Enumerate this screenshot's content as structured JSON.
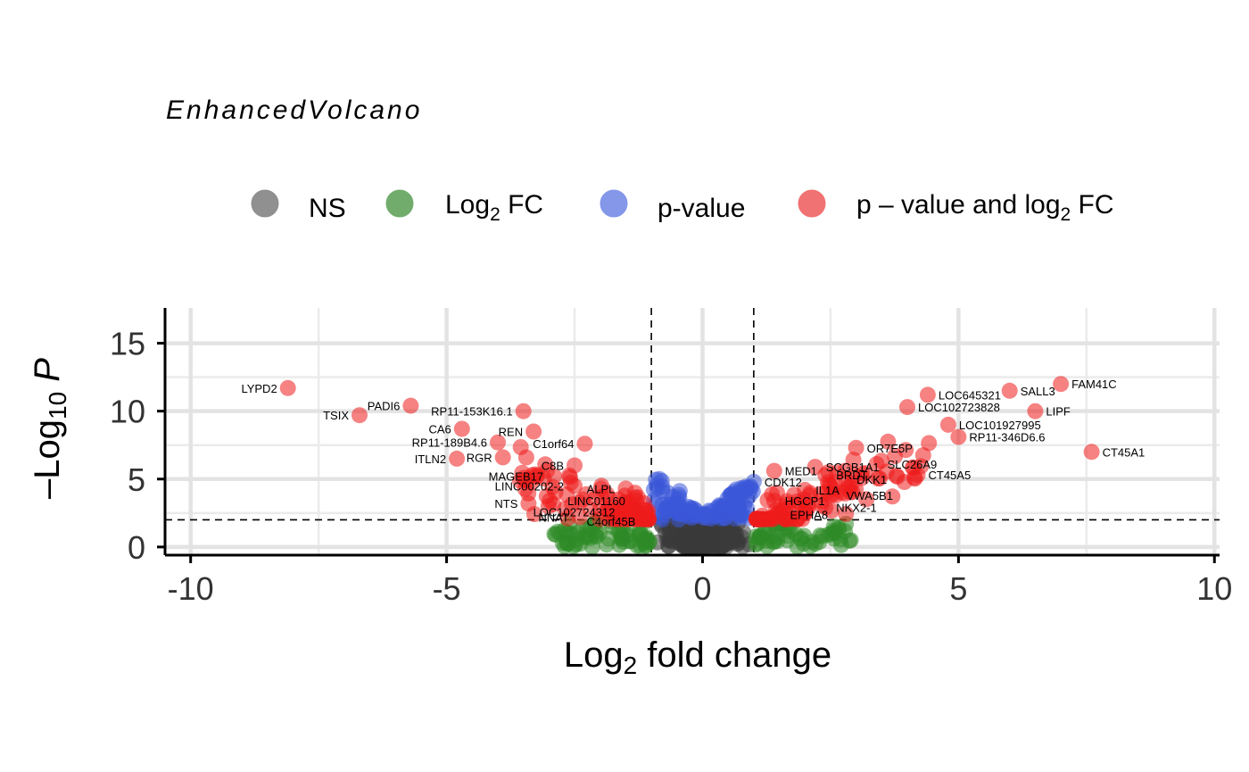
{
  "chart_data": {
    "type": "scatter",
    "title": "EnhancedVolcano",
    "xlabel": {
      "base": "Log",
      "sub": "2",
      "rest": " fold change"
    },
    "ylabel": {
      "pre": "–Log",
      "sub": "10",
      "italic": "P"
    },
    "xlim": [
      -10.5,
      10.1
    ],
    "ylim": [
      -0.6,
      17.6
    ],
    "x_ticks": [
      -10,
      -5,
      0,
      5,
      10
    ],
    "x_tick_labels": [
      "-10",
      "-5",
      "0",
      "5",
      "10"
    ],
    "y_ticks": [
      0,
      5,
      10,
      15
    ],
    "y_tick_labels": [
      "0",
      "5",
      "10",
      "15"
    ],
    "fc_cutoff": 1,
    "p_cutoff_neglog10": 2,
    "grid": true,
    "legend_position": "top",
    "legend": [
      {
        "key": "ns",
        "label": "NS",
        "color": "#8a8a8a"
      },
      {
        "key": "fc",
        "label": "Log",
        "sub": "2",
        "post": " FC",
        "color": "#6aa865"
      },
      {
        "key": "p",
        "label": "p-value",
        "color": "#7e91e8"
      },
      {
        "key": "both",
        "label": "p – value and log",
        "sub": "2",
        "post": " FC",
        "color": "#f06a6a"
      }
    ],
    "colors": {
      "ns": "#3a3a3a",
      "fc": "#2e8a26",
      "p": "#3a57d8",
      "both": "#ee1c1c"
    },
    "labeled_points": [
      {
        "label": "LYPD2",
        "x": -8.1,
        "y": 11.7
      },
      {
        "label": "TSIX",
        "x": -6.7,
        "y": 9.7
      },
      {
        "label": "PADI6",
        "x": -5.7,
        "y": 10.4
      },
      {
        "label": "RP11-153K16.1",
        "x": -3.5,
        "y": 10.0
      },
      {
        "label": "CA6",
        "x": -4.7,
        "y": 8.7
      },
      {
        "label": "REN",
        "x": -3.3,
        "y": 8.5
      },
      {
        "label": "RP11-189B4.6",
        "x": -4.0,
        "y": 7.7
      },
      {
        "label": "C1orf64",
        "x": -2.3,
        "y": 7.6
      },
      {
        "label": "ITLN2",
        "x": -4.8,
        "y": 6.5
      },
      {
        "label": "RGR",
        "x": -3.9,
        "y": 6.6
      },
      {
        "label": "C8B",
        "x": -2.5,
        "y": 6.0
      },
      {
        "label": "MAGEB17",
        "x": -2.9,
        "y": 5.2
      },
      {
        "label": "LINC00202-2",
        "x": -2.5,
        "y": 4.5
      },
      {
        "label": "ALPL",
        "x": -1.5,
        "y": 4.3
      },
      {
        "label": "LINC01160",
        "x": -1.3,
        "y": 3.4
      },
      {
        "label": "NTS",
        "x": -3.4,
        "y": 3.2
      },
      {
        "label": "LOC102724312",
        "x": -1.5,
        "y": 2.6
      },
      {
        "label": "NNAT",
        "x": -2.4,
        "y": 2.2
      },
      {
        "label": "C4orf45B",
        "x": -1.1,
        "y": 1.9
      },
      {
        "label": "FAM41C",
        "x": 7.0,
        "y": 12.0
      },
      {
        "label": "SALL3",
        "x": 6.0,
        "y": 11.5
      },
      {
        "label": "LOC645321",
        "x": 4.4,
        "y": 11.2
      },
      {
        "label": "LOC102723828",
        "x": 4.0,
        "y": 10.3
      },
      {
        "label": "LIPF",
        "x": 6.5,
        "y": 10.0
      },
      {
        "label": "LOC101927995",
        "x": 4.8,
        "y": 9.0
      },
      {
        "label": "RP11-346D6.6",
        "x": 5.0,
        "y": 8.1
      },
      {
        "label": "CT45A1",
        "x": 7.6,
        "y": 7.0
      },
      {
        "label": "OR7E5P",
        "x": 3.0,
        "y": 7.3
      },
      {
        "label": "SLC26A9",
        "x": 3.4,
        "y": 6.1
      },
      {
        "label": "SCGB1A1",
        "x": 2.2,
        "y": 5.9
      },
      {
        "label": "CT45A5",
        "x": 4.2,
        "y": 5.3
      },
      {
        "label": "MED1",
        "x": 1.4,
        "y": 5.6
      },
      {
        "label": "BRDT",
        "x": 2.4,
        "y": 5.3
      },
      {
        "label": "DKK1",
        "x": 2.8,
        "y": 5.0
      },
      {
        "label": "CDK12",
        "x": 1.0,
        "y": 4.8
      },
      {
        "label": "IL1A",
        "x": 2.0,
        "y": 4.2
      },
      {
        "label": "VWA5B1",
        "x": 2.6,
        "y": 3.8
      },
      {
        "label": "HGCP1",
        "x": 1.4,
        "y": 3.4
      },
      {
        "label": "NKX2-1",
        "x": 2.4,
        "y": 2.9
      },
      {
        "label": "EPHA8",
        "x": 1.5,
        "y": 2.4
      }
    ]
  }
}
